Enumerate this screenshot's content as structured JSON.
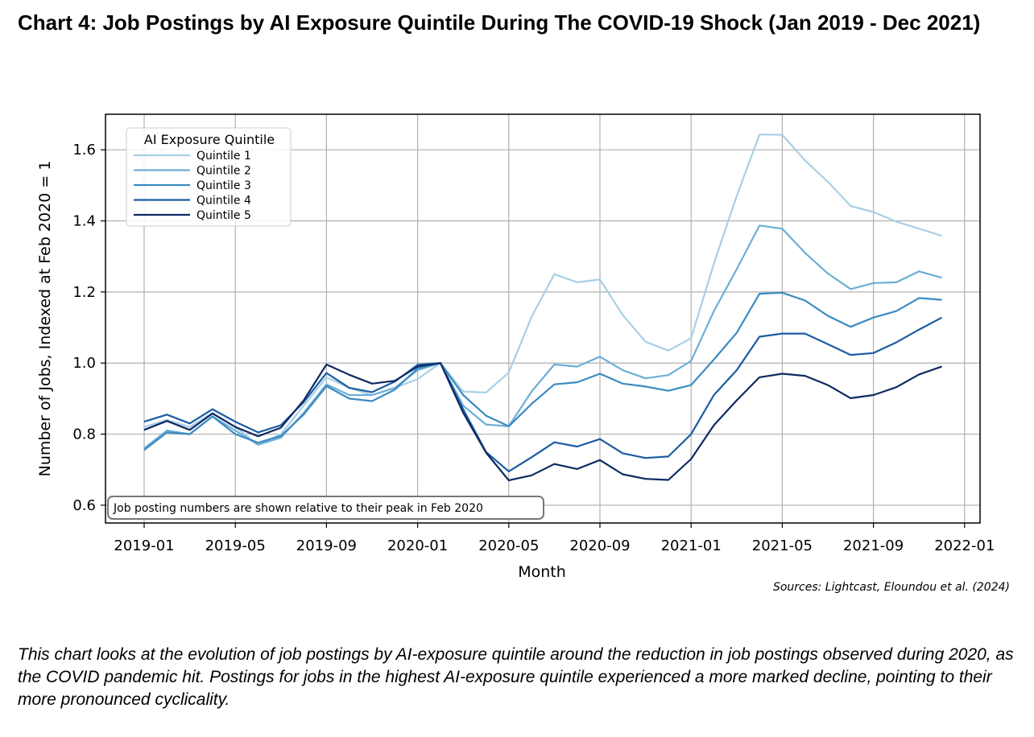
{
  "header": {
    "title": "Chart 4: Job Postings by AI Exposure Quintile During The COVID-19 Shock (Jan 2019 - Dec 2021)"
  },
  "chart_data": {
    "type": "line",
    "xlabel": "Month",
    "ylabel": "Number of Jobs, Indexed at Feb 2020 = 1",
    "x_ticks": [
      "2019-01",
      "2019-05",
      "2019-09",
      "2020-01",
      "2020-05",
      "2020-09",
      "2021-01",
      "2021-05",
      "2021-09",
      "2022-01"
    ],
    "y_ticks": [
      "0.6",
      "0.8",
      "1.0",
      "1.2",
      "1.4",
      "1.6"
    ],
    "ylim": [
      0.55,
      1.7
    ],
    "grid": true,
    "legend_title": "AI Exposure Quintile",
    "legend_position": "top-left",
    "annotation": "Job posting numbers are shown relative to their peak in Feb 2020",
    "x": [
      "2019-01",
      "2019-02",
      "2019-03",
      "2019-04",
      "2019-05",
      "2019-06",
      "2019-07",
      "2019-08",
      "2019-09",
      "2019-10",
      "2019-11",
      "2019-12",
      "2020-01",
      "2020-02",
      "2020-03",
      "2020-04",
      "2020-05",
      "2020-06",
      "2020-07",
      "2020-08",
      "2020-09",
      "2020-10",
      "2020-11",
      "2020-12",
      "2021-01",
      "2021-02",
      "2021-03",
      "2021-04",
      "2021-05",
      "2021-06",
      "2021-07",
      "2021-08",
      "2021-09",
      "2021-10",
      "2021-11",
      "2021-12"
    ],
    "series": [
      {
        "name": "Quintile 1",
        "color": "#a9cfe5",
        "values": [
          0.82,
          0.84,
          0.82,
          0.86,
          0.82,
          0.77,
          0.8,
          0.88,
          0.96,
          0.93,
          0.91,
          0.93,
          0.955,
          1.0,
          0.92,
          0.917,
          0.973,
          1.13,
          1.25,
          1.227,
          1.235,
          1.135,
          1.06,
          1.035,
          1.07,
          1.28,
          1.47,
          1.643,
          1.642,
          1.57,
          1.51,
          1.442,
          1.425,
          1.398,
          1.378,
          1.358
        ]
      },
      {
        "name": "Quintile 2",
        "color": "#6baed6",
        "values": [
          0.76,
          0.81,
          0.8,
          0.85,
          0.81,
          0.77,
          0.79,
          0.86,
          0.94,
          0.91,
          0.91,
          0.93,
          0.98,
          1.0,
          0.88,
          0.827,
          0.822,
          0.92,
          0.996,
          0.99,
          1.018,
          0.98,
          0.957,
          0.966,
          1.006,
          1.146,
          1.264,
          1.387,
          1.378,
          1.31,
          1.252,
          1.208,
          1.225,
          1.227,
          1.258,
          1.24
        ]
      },
      {
        "name": "Quintile 3",
        "color": "#3b8bc2",
        "values": [
          0.755,
          0.805,
          0.8,
          0.85,
          0.8,
          0.776,
          0.795,
          0.855,
          0.935,
          0.9,
          0.893,
          0.925,
          0.985,
          1.0,
          0.91,
          0.852,
          0.822,
          0.885,
          0.94,
          0.946,
          0.97,
          0.942,
          0.934,
          0.922,
          0.938,
          1.01,
          1.085,
          1.195,
          1.198,
          1.176,
          1.133,
          1.102,
          1.128,
          1.146,
          1.183,
          1.178
        ]
      },
      {
        "name": "Quintile 4",
        "color": "#1c5ca2",
        "values": [
          0.835,
          0.855,
          0.83,
          0.87,
          0.835,
          0.805,
          0.825,
          0.89,
          0.972,
          0.93,
          0.918,
          0.948,
          0.995,
          1.0,
          0.87,
          0.75,
          0.695,
          0.735,
          0.777,
          0.765,
          0.786,
          0.746,
          0.733,
          0.737,
          0.8,
          0.91,
          0.98,
          1.074,
          1.083,
          1.083,
          1.053,
          1.023,
          1.028,
          1.058,
          1.094,
          1.128
        ]
      },
      {
        "name": "Quintile 5",
        "color": "#0d2a63",
        "values": [
          0.812,
          0.837,
          0.812,
          0.858,
          0.82,
          0.794,
          0.818,
          0.895,
          0.996,
          0.967,
          0.942,
          0.95,
          0.99,
          1.0,
          0.86,
          0.748,
          0.67,
          0.684,
          0.716,
          0.702,
          0.727,
          0.687,
          0.674,
          0.671,
          0.73,
          0.825,
          0.895,
          0.96,
          0.97,
          0.964,
          0.938,
          0.901,
          0.91,
          0.932,
          0.968,
          0.99
        ]
      }
    ]
  },
  "footer": {
    "source": "Sources: Lightcast, Eloundou et al. (2024)",
    "caption": "This chart looks at the evolution of job postings by AI-exposure quintile around the reduction in job postings observed during 2020, as the COVID pandemic hit. Postings for jobs in the highest AI-exposure quintile experienced a more marked decline, pointing to their more pronounced cyclicality."
  }
}
